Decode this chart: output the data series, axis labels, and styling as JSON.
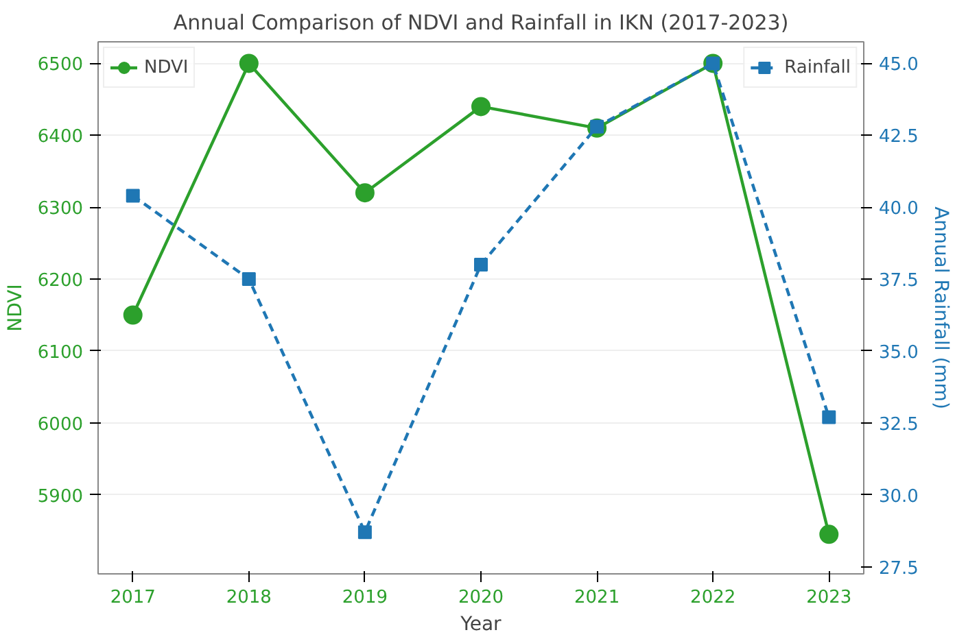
{
  "chart_data": {
    "type": "line",
    "title": "Annual Comparison of NDVI and Rainfall in IKN (2017-2023)",
    "xlabel": "Year",
    "ylabel": "NDVI",
    "y2label": "Annual Rainfall (mm)",
    "categories": [
      "2017",
      "2018",
      "2019",
      "2020",
      "2021",
      "2022",
      "2023"
    ],
    "series": [
      {
        "name": "NDVI",
        "color": "#2ca02c",
        "marker": "circle",
        "line_style": "solid",
        "values": [
          6150,
          6500,
          6320,
          6440,
          6410,
          6500,
          5845
        ]
      },
      {
        "name": "Rainfall",
        "color": "#1f77b4",
        "marker": "square",
        "line_style": "dashed",
        "axis": "y2",
        "values": [
          40.4,
          37.5,
          28.7,
          38.0,
          42.8,
          45.0,
          32.7
        ]
      }
    ],
    "ylim": [
      5790,
      6530
    ],
    "yticks": [
      5900,
      6000,
      6100,
      6200,
      6300,
      6400,
      6500
    ],
    "y2lim": [
      27.25,
      45.75
    ],
    "y2ticks": [
      {
        "value": 27.5,
        "label": "27.5"
      },
      {
        "value": 30,
        "label": "30.0"
      },
      {
        "value": 32.5,
        "label": "32.5"
      },
      {
        "value": 35,
        "label": "35.0"
      },
      {
        "value": 37.5,
        "label": "37.5"
      },
      {
        "value": 40,
        "label": "40.0"
      },
      {
        "value": 42.5,
        "label": "42.5"
      },
      {
        "value": 45,
        "label": "45.0"
      }
    ],
    "grid": "y",
    "legend": "top"
  }
}
